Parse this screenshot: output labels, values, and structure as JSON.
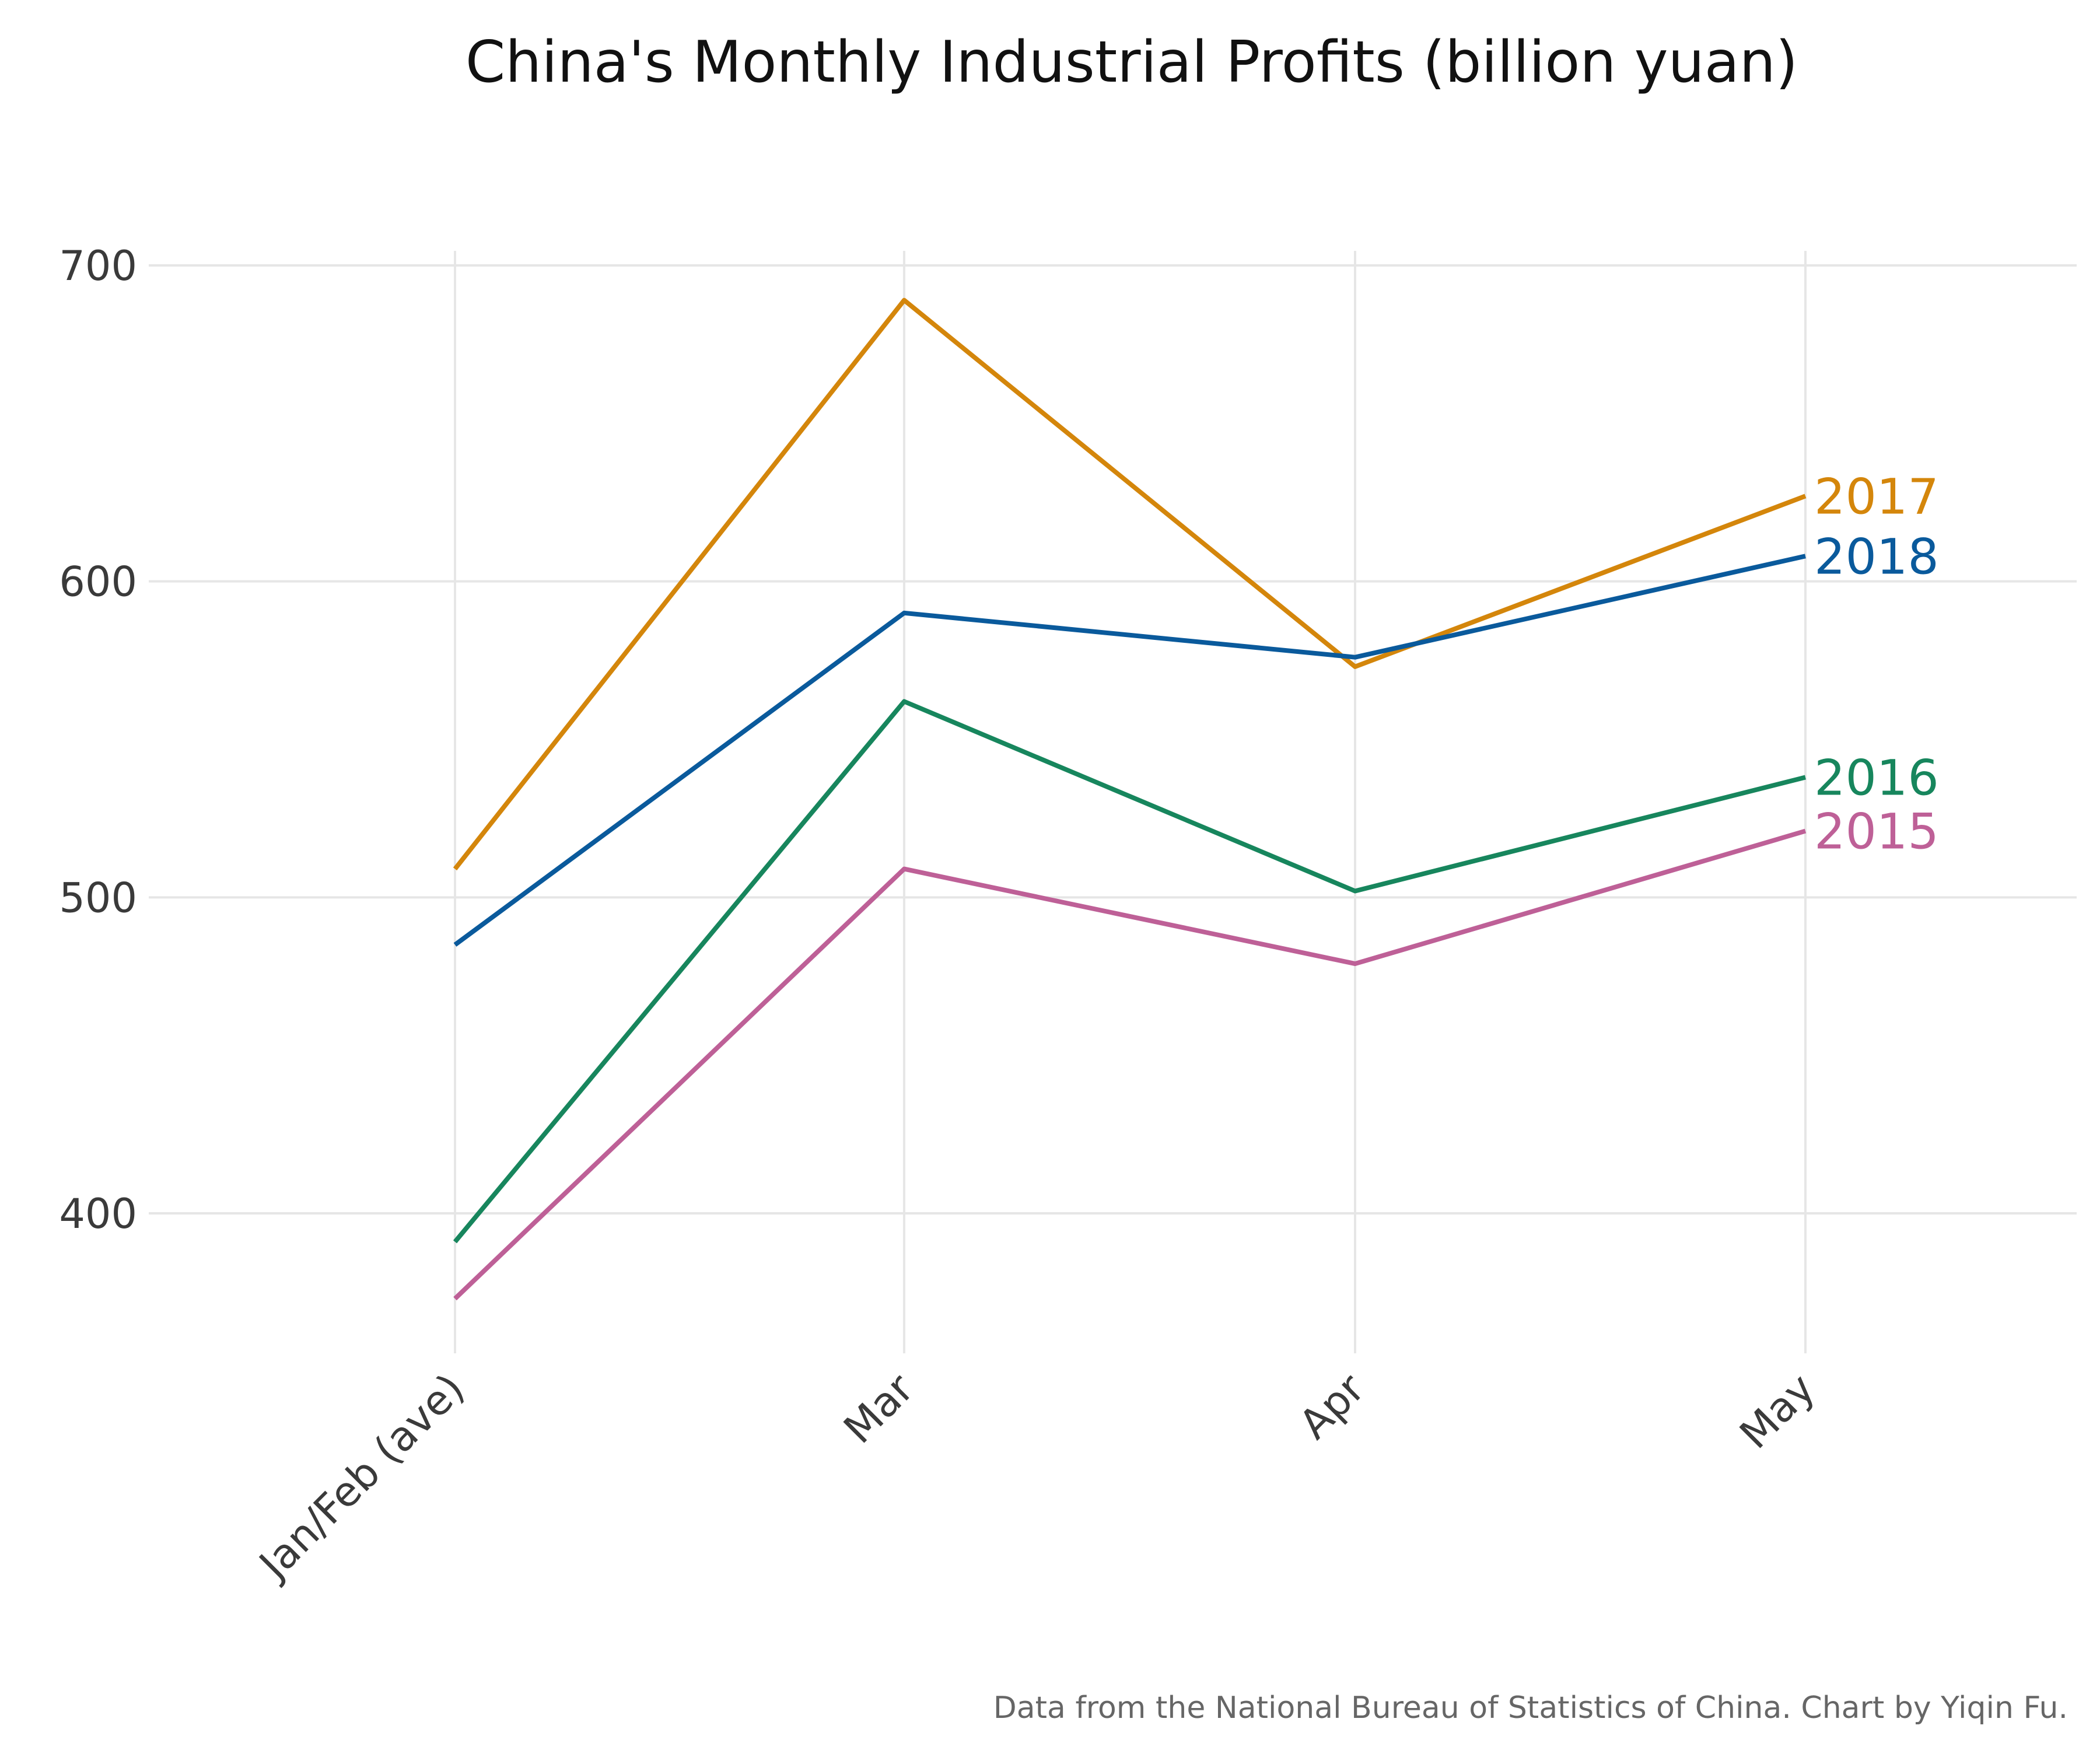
{
  "chart_data": {
    "type": "line",
    "title": "China's Monthly Industrial Profits (billion yuan)",
    "xlabel": "",
    "ylabel": "",
    "categories": [
      "Jan/Feb (ave)",
      "Mar",
      "Apr",
      "May"
    ],
    "ylim": [
      355,
      705
    ],
    "yticks": [
      400,
      500,
      600,
      700
    ],
    "ytick_labels": [
      "400",
      "500",
      "600",
      "700"
    ],
    "grid": true,
    "legend": "direct labels at line ends (right)",
    "series": [
      {
        "name": "2017",
        "color": "#D4860B",
        "values": [
          509,
          689,
          573,
          627
        ]
      },
      {
        "name": "2018",
        "color": "#0A5A9C",
        "values": [
          485,
          590,
          576,
          608
        ]
      },
      {
        "name": "2016",
        "color": "#17865D",
        "values": [
          391,
          562,
          502,
          538
        ]
      },
      {
        "name": "2015",
        "color": "#BE6097",
        "values": [
          373,
          509,
          479,
          521
        ]
      }
    ]
  },
  "caption": "Data from the National Bureau of Statistics of China. Chart by Yiqin Fu."
}
